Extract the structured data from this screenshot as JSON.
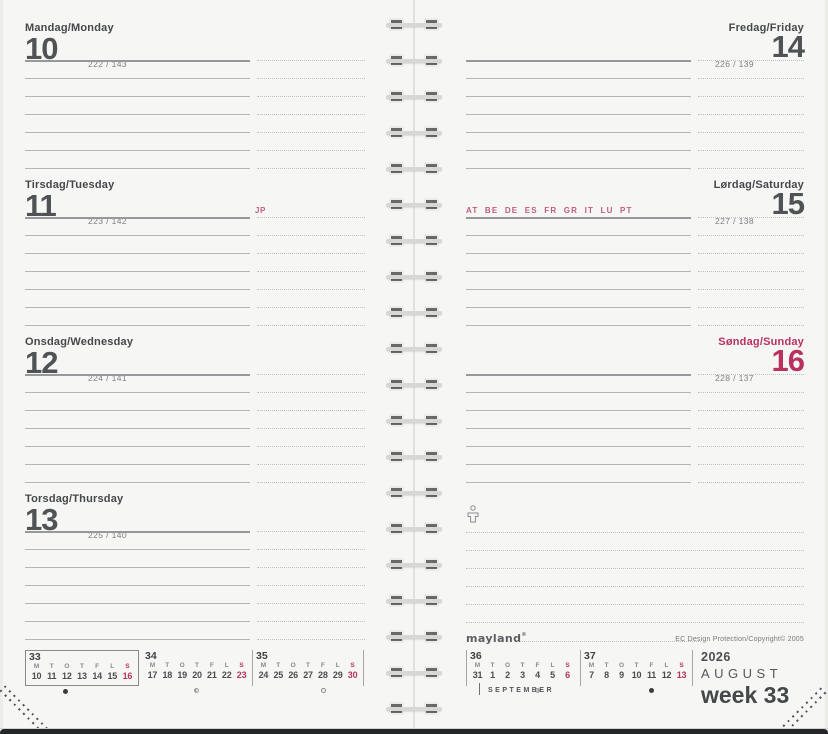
{
  "page": {
    "background": "#f6f6f4",
    "accent_pink": "#b93160",
    "line_gray": "#b4b5b7"
  },
  "days": [
    {
      "id": "monday",
      "title": "Mandag/Monday",
      "number": "10",
      "ordinal": "222 / 143",
      "note": ""
    },
    {
      "id": "tuesday",
      "title": "Tirsdag/Tuesday",
      "number": "11",
      "ordinal": "223 / 142",
      "note": "JP"
    },
    {
      "id": "wednesday",
      "title": "Onsdag/Wednesday",
      "number": "12",
      "ordinal": "224 / 141",
      "note": ""
    },
    {
      "id": "thursday",
      "title": "Torsdag/Thursday",
      "number": "13",
      "ordinal": "225 / 140",
      "note": ""
    },
    {
      "id": "friday",
      "title": "Fredag/Friday",
      "number": "14",
      "ordinal": "226 / 139",
      "note": ""
    },
    {
      "id": "saturday",
      "title": "Lørdag/Saturday",
      "number": "15",
      "ordinal": "227 / 138",
      "note": "AT BE DE ES FR GR IT LU PT"
    },
    {
      "id": "sunday",
      "title": "Søndag/Sunday",
      "number": "16",
      "ordinal": "228 / 137",
      "note": ""
    }
  ],
  "minicals": {
    "day_letters": [
      "M",
      "T",
      "O",
      "T",
      "F",
      "L",
      "S"
    ],
    "weeks": [
      {
        "week": "33",
        "dates": [
          "10",
          "11",
          "12",
          "13",
          "14",
          "15",
          "16"
        ],
        "moon": {
          "index": 2,
          "phase": "new"
        }
      },
      {
        "week": "34",
        "dates": [
          "17",
          "18",
          "19",
          "20",
          "21",
          "22",
          "23"
        ],
        "moon": {
          "index": 3,
          "phase": "first-quarter"
        }
      },
      {
        "week": "35",
        "dates": [
          "24",
          "25",
          "26",
          "27",
          "28",
          "29",
          "30"
        ],
        "moon": {
          "index": 4,
          "phase": "full"
        }
      },
      {
        "week": "36",
        "dates": [
          "31",
          "1",
          "2",
          "3",
          "4",
          "5",
          "6"
        ],
        "moon": {
          "index": 4,
          "phase": "last-quarter"
        },
        "month_label": "SEPTEMBER"
      },
      {
        "week": "37",
        "dates": [
          "7",
          "8",
          "9",
          "10",
          "11",
          "12",
          "13"
        ],
        "moon": {
          "index": 4,
          "phase": "new"
        }
      }
    ]
  },
  "corner": {
    "year": "2026",
    "month": "AUGUST",
    "week_label": "week 33"
  },
  "footer": {
    "brand": "mayland",
    "brand_mark": "®",
    "rights": "EC Design Protection/Copyright© 2005"
  }
}
